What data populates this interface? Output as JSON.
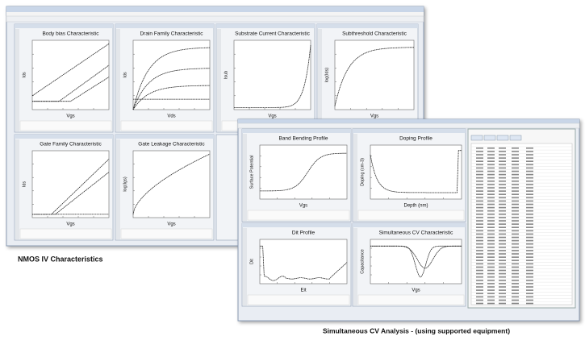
{
  "back_window": {
    "panels": [
      {
        "title": "Body bias Characteristic",
        "y_label": "Ids",
        "x_label": "Vgs"
      },
      {
        "title": "Drain Family Characteristic",
        "y_label": "Ids",
        "x_label": "Vds"
      },
      {
        "title": "Substrate Current Characteristic",
        "y_label": "Isub",
        "x_label": "Vgs"
      },
      {
        "title": "Subthreshold Characteristic",
        "y_label": "log(Ids)",
        "x_label": "Vgs"
      },
      {
        "title": "Gate Family Characteristic",
        "y_label": "Ids",
        "x_label": "Vgs"
      },
      {
        "title": "Gate Leakage Characteristic",
        "y_label": "log(Igs)",
        "x_label": "Vgs"
      }
    ],
    "caption": "NMOS  IV Characteristics"
  },
  "front_window": {
    "panels": [
      {
        "title": "Band Bending Profile",
        "y_label": "Surface Potential",
        "x_label": "Vgs"
      },
      {
        "title": "Doping Profile",
        "y_label": "Doping (cm-3)",
        "x_label": "Depth (nm)"
      },
      {
        "title": "Dit Profile",
        "y_label": "Dit",
        "x_label": "Eit"
      },
      {
        "title": "Simultaneous CV Characteristic",
        "y_label": "Capacitance",
        "x_label": "Vgs"
      }
    ],
    "caption": "Simultaneous CV Analysis - (using supported equipment)"
  }
}
